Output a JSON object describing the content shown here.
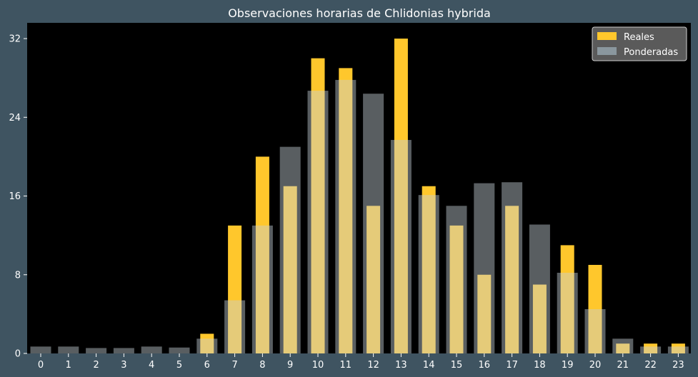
{
  "chart_data": {
    "type": "bar",
    "title": "Observaciones horarias de Chlidonias hybrida",
    "xlabel": "",
    "ylabel": "",
    "categories": [
      "0",
      "1",
      "2",
      "3",
      "4",
      "5",
      "6",
      "7",
      "8",
      "9",
      "10",
      "11",
      "12",
      "13",
      "14",
      "15",
      "16",
      "17",
      "18",
      "19",
      "20",
      "21",
      "22",
      "23"
    ],
    "series": [
      {
        "name": "Reales",
        "color": "#ffc72c",
        "values": [
          0,
          0,
          0,
          0,
          0,
          0,
          2,
          13,
          20,
          17,
          30,
          29,
          15,
          32,
          17,
          13,
          8,
          15,
          7,
          11,
          9,
          1,
          1,
          1
        ]
      },
      {
        "name": "Ponderadas",
        "color": "#c5d0d6",
        "opacity": 0.45,
        "values": [
          0.7,
          0.7,
          0.55,
          0.55,
          0.7,
          0.6,
          1.5,
          5.4,
          13,
          21,
          26.7,
          27.8,
          26.4,
          21.7,
          16.1,
          15,
          17.3,
          17.4,
          13.1,
          8.2,
          4.5,
          1.5,
          0.7,
          0.7
        ]
      }
    ],
    "yticks": [
      0,
      8,
      16,
      24,
      32
    ],
    "ylim": [
      0,
      33.6
    ],
    "grid": false,
    "legend": "top-right",
    "plot_background": "#000000",
    "figure_background": "#3f5461"
  }
}
